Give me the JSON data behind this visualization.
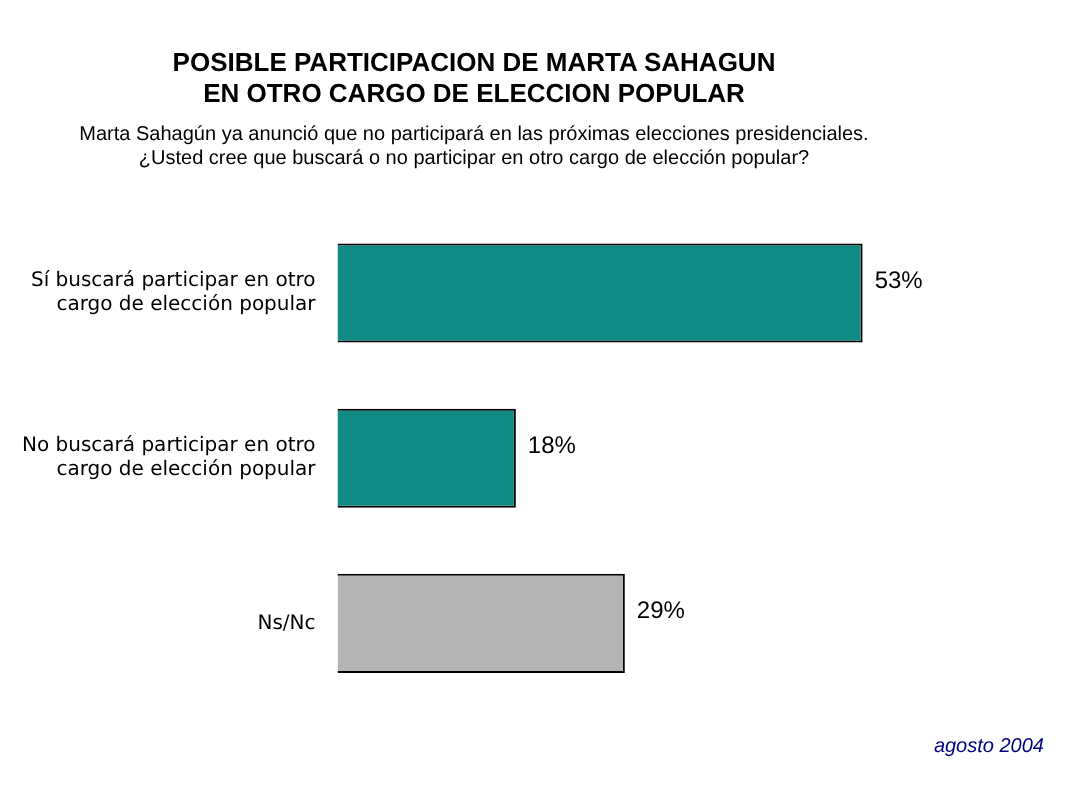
{
  "chart_data": {
    "type": "bar",
    "orientation": "horizontal",
    "title": "POSIBLE PARTICIPACION DE MARTA SAHAGUN\nEN OTRO CARGO DE ELECCION POPULAR",
    "subtitle": "Marta Sahagún ya anunció que no participará en las próximas elecciones presidenciales.\n¿Usted cree que buscará o no participar en otro cargo de elección popular?",
    "categories": [
      "Sí buscará participar en otro cargo de elección popular",
      "No buscará participar en otro cargo de elección popular",
      "Ns/Nc"
    ],
    "values": [
      53,
      18,
      29
    ],
    "colors": [
      "#108a84",
      "#108a84",
      "#b4b4b4"
    ],
    "value_labels": [
      "53%",
      "18%",
      "29%"
    ],
    "annotations": [
      "agosto 2004"
    ],
    "legend": false
  }
}
